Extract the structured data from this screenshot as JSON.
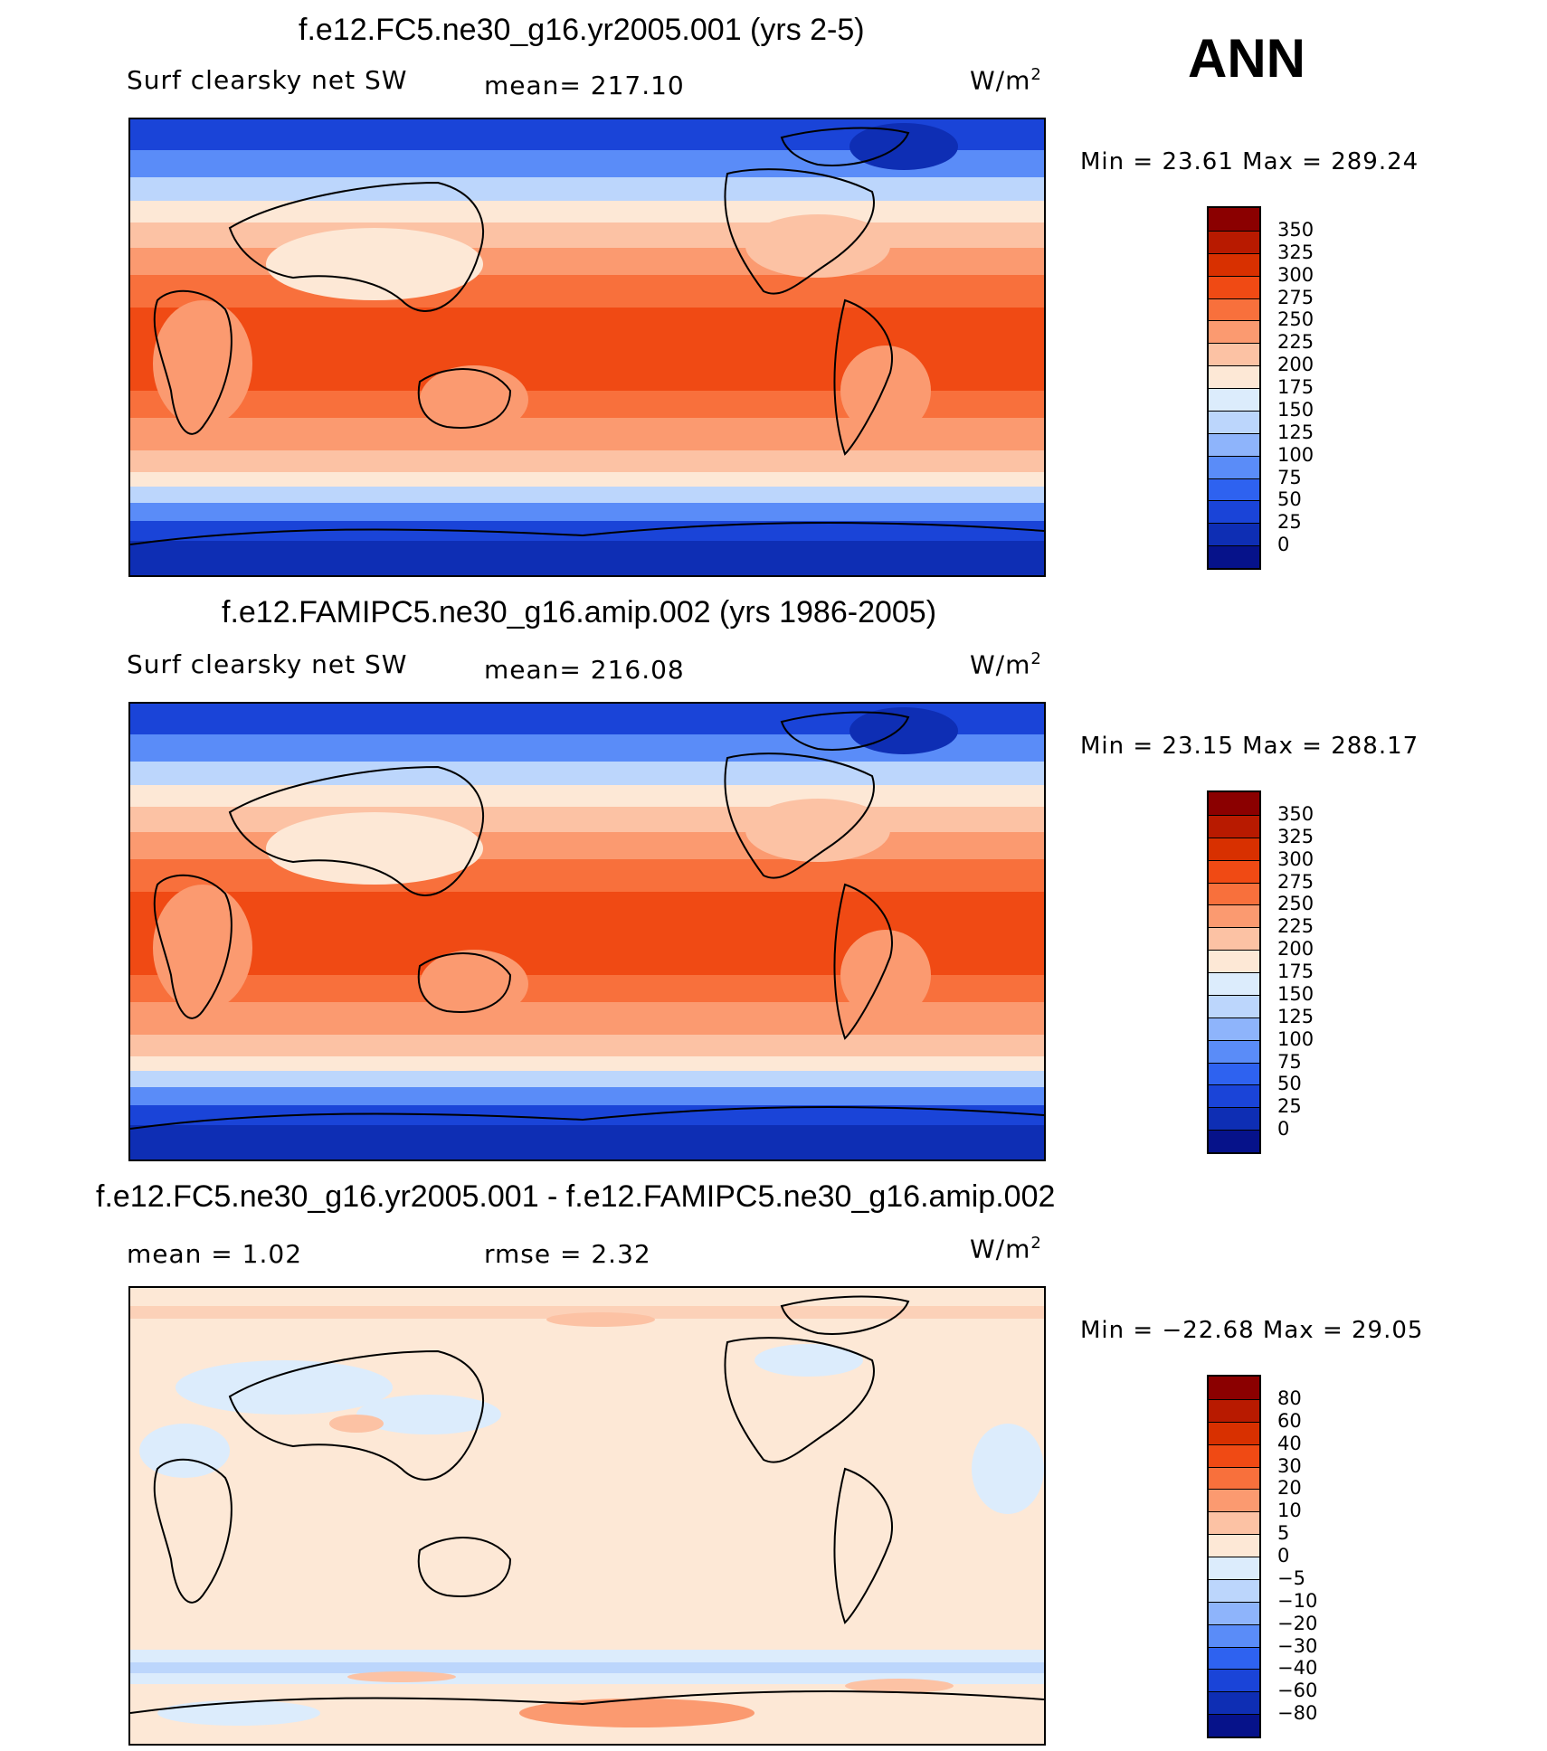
{
  "season": "ANN",
  "units": "W/m",
  "units_exp": "2",
  "panels": [
    {
      "title": "f.e12.FC5.ne30_g16.yr2005.001 (yrs 2-5)",
      "left_label": "Surf clearsky net SW",
      "center_label": "mean= 217.10",
      "minmax": "Min =   23.61 Max = 289.24"
    },
    {
      "title": "f.e12.FAMIPC5.ne30_g16.amip.002 (yrs 1986-2005)",
      "left_label": "Surf clearsky net SW",
      "center_label": "mean= 216.08",
      "minmax": "Min =   23.15 Max = 288.17"
    },
    {
      "title": "f.e12.FC5.ne30_g16.yr2005.001 - f.e12.FAMIPC5.ne30_g16.amip.002",
      "left_label": "mean =    1.02",
      "center_label": "rmse =    2.32",
      "minmax": "Min = −22.68 Max =   29.05"
    }
  ],
  "colorbars": {
    "absolute": {
      "labels": [
        "350",
        "325",
        "300",
        "275",
        "250",
        "225",
        "200",
        "175",
        "150",
        "125",
        "100",
        "75",
        "50",
        "25",
        "0"
      ],
      "colors": [
        "#8b0000",
        "#b81a00",
        "#d83000",
        "#f04a14",
        "#f8703c",
        "#fb9a70",
        "#fcc2a4",
        "#fde8d6",
        "#dcecfc",
        "#bcd6fc",
        "#8eb4fb",
        "#5a8cf8",
        "#2e62f0",
        "#1a44d8",
        "#0e2eb4",
        "#06128a"
      ]
    },
    "difference": {
      "labels": [
        "80",
        "60",
        "40",
        "30",
        "20",
        "10",
        "5",
        "0",
        "−5",
        "−10",
        "−20",
        "−30",
        "−40",
        "−60",
        "−80"
      ],
      "colors": [
        "#8b0000",
        "#b81a00",
        "#d83000",
        "#f04a14",
        "#f8703c",
        "#fb9a70",
        "#fcc2a4",
        "#fde8d6",
        "#dcecfc",
        "#bcd6fc",
        "#8eb4fb",
        "#5a8cf8",
        "#2e62f0",
        "#1a44d8",
        "#0e2eb4",
        "#06128a"
      ]
    }
  }
}
